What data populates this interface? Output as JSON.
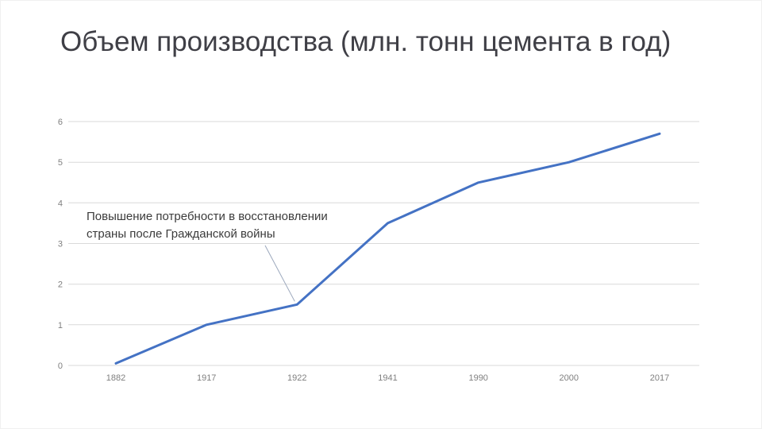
{
  "slide": {
    "title": "Объем производства (млн. тонн цемента в год)"
  },
  "annotation": {
    "text": "Повышение потребности в восстановлении страны после Гражданской войны"
  },
  "colors": {
    "line": "#4472C4",
    "grid": "#D9D9D9",
    "axis_text": "#7F7F7F",
    "title_text": "#3F3F46",
    "annotation_text": "#3B3B3B",
    "leader": "#9BA7BC"
  },
  "chart_data": {
    "type": "line",
    "title": "Объем производства (млн. тонн цемента в год)",
    "categories": [
      "1882",
      "1917",
      "1922",
      "1941",
      "1990",
      "2000",
      "2017"
    ],
    "values": [
      0.05,
      1,
      1.5,
      3.5,
      4.5,
      5,
      5.7
    ],
    "xlabel": "",
    "ylabel": "",
    "ylim": [
      0,
      6
    ],
    "yticks": [
      0,
      1,
      2,
      3,
      4,
      5,
      6
    ],
    "grid": true,
    "legend": false,
    "annotation": "Повышение потребности в восстановлении страны после Гражданской войны",
    "annotation_target_category": "1922",
    "annotation_target_index": 2
  }
}
